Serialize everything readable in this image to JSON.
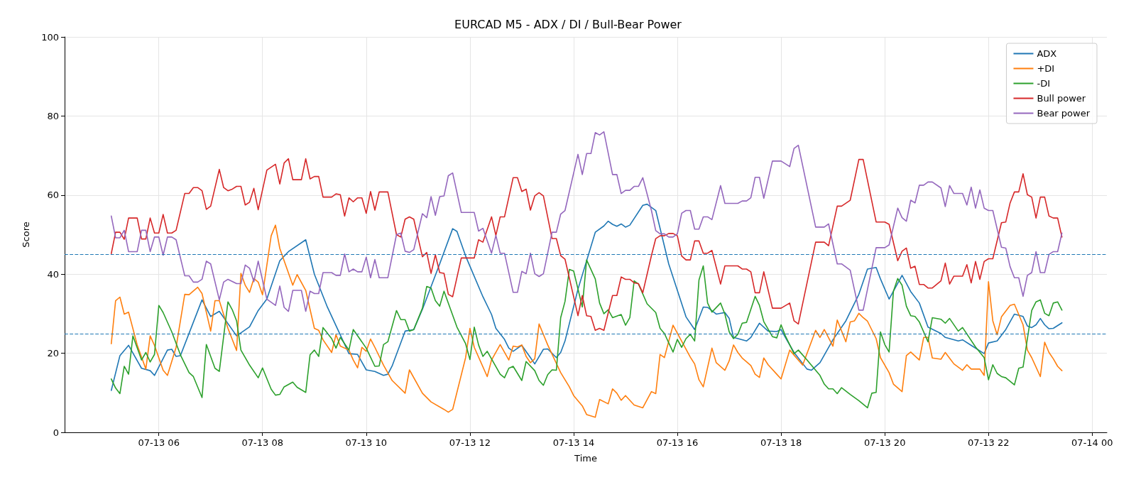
{
  "chart_data": {
    "type": "line",
    "title": "EURCAD M5 - ADX / DI / Bull-Bear Power",
    "xlabel": "Time",
    "ylabel": "Score",
    "xlim": [
      "--07-13T04:11",
      "--07-14T00:17"
    ],
    "xticks": [
      {
        "value": "--07-13T06:00",
        "label": "07-13 06"
      },
      {
        "value": "--07-13T08:00",
        "label": "07-13 08"
      },
      {
        "value": "--07-13T10:00",
        "label": "07-13 10"
      },
      {
        "value": "--07-13T12:00",
        "label": "07-13 12"
      },
      {
        "value": "--07-13T14:00",
        "label": "07-13 14"
      },
      {
        "value": "--07-13T16:00",
        "label": "07-13 16"
      },
      {
        "value": "--07-13T18:00",
        "label": "07-13 18"
      },
      {
        "value": "--07-13T20:00",
        "label": "07-13 20"
      },
      {
        "value": "--07-13T22:00",
        "label": "07-13 22"
      },
      {
        "value": "--07-14T00:00",
        "label": "07-14 00"
      }
    ],
    "ylim": [
      0,
      100
    ],
    "yticks": [
      0,
      20,
      40,
      60,
      80,
      100
    ],
    "grid": true,
    "legend": "top right",
    "line_style": "solid",
    "ref_lines": [
      {
        "axis": "y",
        "value": 45,
        "color": "#1f77b4",
        "line_style": "dashed"
      },
      {
        "axis": "y",
        "value": 25,
        "color": "#1f77b4",
        "line_style": "dashed"
      }
    ],
    "series": [
      {
        "name": "ADX",
        "color": "#1f77b4",
        "x": [
          "--07-13T05:05",
          "--07-13T05:15",
          "--07-13T05:25",
          "--07-13T05:40",
          "--07-13T05:50",
          "--07-13T05:55",
          "--07-13T06:10",
          "--07-13T06:15",
          "--07-13T06:20",
          "--07-13T06:25",
          "--07-13T06:50",
          "--07-13T07:00",
          "--07-13T07:10",
          "--07-13T07:30",
          "--07-13T07:45",
          "--07-13T07:55",
          "--07-13T08:05",
          "--07-13T08:20",
          "--07-13T08:30",
          "--07-13T08:50",
          "--07-13T09:00",
          "--07-13T09:15",
          "--07-13T09:40",
          "--07-13T09:50",
          "--07-13T10:00",
          "--07-13T10:10",
          "--07-13T10:20",
          "--07-13T10:25",
          "--07-13T10:30",
          "--07-13T10:45",
          "--07-13T10:55",
          "--07-13T11:05",
          "--07-13T11:25",
          "--07-13T11:40",
          "--07-13T11:45",
          "--07-13T11:55",
          "--07-13T12:15",
          "--07-13T12:25",
          "--07-13T12:30",
          "--07-13T12:40",
          "--07-13T12:45",
          "--07-13T12:50",
          "--07-13T13:00",
          "--07-13T13:10",
          "--07-13T13:15",
          "--07-13T13:25",
          "--07-13T13:30",
          "--07-13T13:40",
          "--07-13T13:45",
          "--07-13T13:50",
          "--07-13T14:05",
          "--07-13T14:25",
          "--07-13T14:35",
          "--07-13T14:40",
          "--07-13T14:45",
          "--07-13T14:50",
          "--07-13T14:55",
          "--07-13T15:00",
          "--07-13T15:05",
          "--07-13T15:20",
          "--07-13T15:25",
          "--07-13T15:35",
          "--07-13T15:50",
          "--07-13T16:10",
          "--07-13T16:20",
          "--07-13T16:30",
          "--07-13T16:35",
          "--07-13T16:45",
          "--07-13T16:55",
          "--07-13T17:00",
          "--07-13T17:05",
          "--07-13T17:20",
          "--07-13T17:25",
          "--07-13T17:35",
          "--07-13T17:45",
          "--07-13T17:55",
          "--07-13T18:00",
          "--07-13T18:05",
          "--07-13T18:15",
          "--07-13T18:30",
          "--07-13T18:35",
          "--07-13T18:45",
          "--07-13T19:00",
          "--07-13T19:15",
          "--07-13T19:30",
          "--07-13T19:40",
          "--07-13T19:50",
          "--07-13T19:55",
          "--07-13T20:05",
          "--07-13T20:20",
          "--07-13T20:30",
          "--07-13T20:40",
          "--07-13T20:50",
          "--07-13T21:05",
          "--07-13T21:10",
          "--07-13T21:25",
          "--07-13T21:30",
          "--07-13T21:40",
          "--07-13T21:55",
          "--07-13T22:00",
          "--07-13T22:10",
          "--07-13T22:20",
          "--07-13T22:30",
          "--07-13T22:40",
          "--07-13T22:45",
          "--07-13T22:50",
          "--07-13T22:55",
          "--07-13T23:00",
          "--07-13T23:05",
          "--07-13T23:10",
          "--07-13T23:15",
          "--07-13T23:25"
        ],
        "values": [
          10.6,
          19.4,
          22,
          16.2,
          15.6,
          14.4,
          20.8,
          21,
          19.2,
          19.4,
          33.5,
          29.3,
          30.6,
          24.4,
          26.7,
          30.8,
          33.7,
          43.4,
          45.7,
          48.7,
          40,
          31.7,
          19.9,
          19.7,
          15.8,
          15.4,
          14.4,
          14.7,
          16.8,
          25.6,
          26,
          31.1,
          42.6,
          51.5,
          50.8,
          44.6,
          34.3,
          29.8,
          26.3,
          23.5,
          21.3,
          20.5,
          22,
          18.9,
          17.3,
          21,
          21.1,
          18.9,
          20.2,
          23.1,
          36.2,
          50.6,
          52.2,
          53.4,
          52.6,
          52.1,
          52.7,
          51.9,
          52.4,
          57.4,
          57.7,
          56.1,
          42.6,
          29.2,
          26,
          31.7,
          31.6,
          29.9,
          30.3,
          28.8,
          24,
          23.1,
          24,
          27.6,
          25.6,
          25.5,
          26,
          24,
          20.2,
          16,
          15.7,
          17.6,
          23.4,
          28.2,
          34.9,
          41.3,
          41.7,
          38.8,
          33.7,
          39.7,
          35.6,
          32.7,
          26.6,
          25,
          24,
          23.1,
          23.4,
          22,
          19.9,
          22.6,
          23.1,
          26,
          29.9,
          29.3,
          26.9,
          26.5,
          27.2,
          28.8,
          27.2,
          26.2,
          26.3,
          27.7
        ]
      },
      {
        "name": "+DI",
        "color": "#ff7f0e",
        "x": [
          "--07-13T05:05",
          "--07-13T05:10",
          "--07-13T05:15",
          "--07-13T05:20",
          "--07-13T05:25",
          "--07-13T05:35",
          "--07-13T05:45",
          "--07-13T05:50",
          "--07-13T05:55",
          "--07-13T06:05",
          "--07-13T06:10",
          "--07-13T06:20",
          "--07-13T06:30",
          "--07-13T06:35",
          "--07-13T06:45",
          "--07-13T06:50",
          "--07-13T07:00",
          "--07-13T07:05",
          "--07-13T07:10",
          "--07-13T07:20",
          "--07-13T07:30",
          "--07-13T07:35",
          "--07-13T07:40",
          "--07-13T07:45",
          "--07-13T07:50",
          "--07-13T07:55",
          "--07-13T08:00",
          "--07-13T08:10",
          "--07-13T08:15",
          "--07-13T08:20",
          "--07-13T08:35",
          "--07-13T08:40",
          "--07-13T08:50",
          "--07-13T09:00",
          "--07-13T09:05",
          "--07-13T09:10",
          "--07-13T09:20",
          "--07-13T09:25",
          "--07-13T09:30",
          "--07-13T09:40",
          "--07-13T09:45",
          "--07-13T09:50",
          "--07-13T09:55",
          "--07-13T10:00",
          "--07-13T10:05",
          "--07-13T10:10",
          "--07-13T10:20",
          "--07-13T10:30",
          "--07-13T10:45",
          "--07-13T10:50",
          "--07-13T11:05",
          "--07-13T11:15",
          "--07-13T11:30",
          "--07-13T11:35",
          "--07-13T11:40",
          "--07-13T11:55",
          "--07-13T12:00",
          "--07-13T12:05",
          "--07-13T12:20",
          "--07-13T12:25",
          "--07-13T12:35",
          "--07-13T12:45",
          "--07-13T12:50",
          "--07-13T12:55",
          "--07-13T13:00",
          "--07-13T13:05",
          "--07-13T13:10",
          "--07-13T13:15",
          "--07-13T13:20",
          "--07-13T13:30",
          "--07-13T13:45",
          "--07-13T13:55",
          "--07-13T14:00",
          "--07-13T14:10",
          "--07-13T14:15",
          "--07-13T14:25",
          "--07-13T14:30",
          "--07-13T14:40",
          "--07-13T14:45",
          "--07-13T14:50",
          "--07-13T14:55",
          "--07-13T15:00",
          "--07-13T15:10",
          "--07-13T15:20",
          "--07-13T15:30",
          "--07-13T15:35",
          "--07-13T15:40",
          "--07-13T15:45",
          "--07-13T15:55",
          "--07-13T16:15",
          "--07-13T16:20",
          "--07-13T16:25",
          "--07-13T16:30",
          "--07-13T16:40",
          "--07-13T16:45",
          "--07-13T16:55",
          "--07-13T17:00",
          "--07-13T17:05",
          "--07-13T17:10",
          "--07-13T17:15",
          "--07-13T17:25",
          "--07-13T17:30",
          "--07-13T17:35",
          "--07-13T17:40",
          "--07-13T17:45",
          "--07-13T17:55",
          "--07-13T18:00",
          "--07-13T18:10",
          "--07-13T18:25",
          "--07-13T18:40",
          "--07-13T18:45",
          "--07-13T18:50",
          "--07-13T19:00",
          "--07-13T19:05",
          "--07-13T19:15",
          "--07-13T19:20",
          "--07-13T19:25",
          "--07-13T19:30",
          "--07-13T19:35",
          "--07-13T19:40",
          "--07-13T19:50",
          "--07-13T19:55",
          "--07-13T20:05",
          "--07-13T20:10",
          "--07-13T20:20",
          "--07-13T20:25",
          "--07-13T20:30",
          "--07-13T20:40",
          "--07-13T20:45",
          "--07-13T20:50",
          "--07-13T20:55",
          "--07-13T21:05",
          "--07-13T21:10",
          "--07-13T21:20",
          "--07-13T21:30",
          "--07-13T21:35",
          "--07-13T21:40",
          "--07-13T21:50",
          "--07-13T21:55",
          "--07-13T22:00",
          "--07-13T22:05",
          "--07-13T22:10",
          "--07-13T22:15",
          "--07-13T22:25",
          "--07-13T22:30",
          "--07-13T22:40",
          "--07-13T22:45",
          "--07-13T22:50",
          "--07-13T23:00",
          "--07-13T23:05",
          "--07-13T23:10",
          "--07-13T23:15",
          "--07-13T23:20",
          "--07-13T23:25"
        ],
        "values": [
          22.4,
          33.3,
          34.2,
          29.9,
          30.4,
          22.1,
          16,
          24.4,
          22,
          15.7,
          14.4,
          21.5,
          34.9,
          34.8,
          36.7,
          35.1,
          25.6,
          33.3,
          33.3,
          26.3,
          20.7,
          40.2,
          37.2,
          35.4,
          38.9,
          38,
          34.8,
          49.7,
          52.4,
          46.5,
          37.2,
          39.9,
          35.9,
          26.3,
          25.8,
          23.4,
          20.2,
          24.7,
          21.8,
          20.8,
          18.3,
          16.3,
          21.5,
          20.5,
          23.6,
          21.5,
          17,
          13.1,
          9.9,
          15.8,
          9.9,
          7.7,
          5.8,
          5.1,
          5.8,
          18.9,
          26.3,
          21.5,
          14.1,
          18.3,
          22.2,
          18.3,
          21.8,
          21.6,
          22.1,
          19.2,
          17.6,
          18.6,
          27.4,
          22.1,
          15.1,
          11.5,
          9.3,
          6.7,
          4.5,
          3.8,
          8.3,
          7.2,
          11,
          9.9,
          8.1,
          9.3,
          6.9,
          6.2,
          10.3,
          9.8,
          19.7,
          18.9,
          27.1,
          19,
          17.3,
          13.3,
          11.5,
          21.3,
          17.6,
          15.7,
          18.1,
          22.1,
          20.2,
          18.8,
          16.9,
          14.7,
          13.9,
          18.8,
          17.1,
          14.7,
          13.5,
          20.8,
          17,
          25.8,
          24,
          26,
          21.8,
          28.4,
          22.9,
          27.9,
          28.2,
          30.1,
          29,
          28.1,
          23.7,
          18.9,
          15.1,
          12.2,
          10.3,
          19.4,
          20.3,
          18.3,
          24,
          24,
          18.8,
          18.5,
          20.2,
          17.3,
          15.7,
          17.1,
          16,
          16,
          14.4,
          38.1,
          28.2,
          24.7,
          29.2,
          32.1,
          32.4,
          27.2,
          20.8,
          18.9,
          14.1,
          22.8,
          20.2,
          18.6,
          16.7,
          15.6
        ]
      },
      {
        "name": "-DI",
        "color": "#2ca02c",
        "x": [
          "--07-13T05:05",
          "--07-13T05:10",
          "--07-13T05:15",
          "--07-13T05:20",
          "--07-13T05:25",
          "--07-13T05:30",
          "--07-13T05:40",
          "--07-13T05:45",
          "--07-13T05:50",
          "--07-13T05:55",
          "--07-13T06:00",
          "--07-13T06:05",
          "--07-13T06:15",
          "--07-13T06:25",
          "--07-13T06:35",
          "--07-13T06:40",
          "--07-13T06:50",
          "--07-13T06:55",
          "--07-13T07:05",
          "--07-13T07:10",
          "--07-13T07:20",
          "--07-13T07:25",
          "--07-13T07:30",
          "--07-13T07:35",
          "--07-13T07:45",
          "--07-13T07:55",
          "--07-13T08:00",
          "--07-13T08:10",
          "--07-13T08:15",
          "--07-13T08:20",
          "--07-13T08:25",
          "--07-13T08:35",
          "--07-13T08:40",
          "--07-13T08:50",
          "--07-13T08:55",
          "--07-13T09:00",
          "--07-13T09:05",
          "--07-13T09:10",
          "--07-13T09:20",
          "--07-13T09:25",
          "--07-13T09:30",
          "--07-13T09:40",
          "--07-13T09:45",
          "--07-13T10:00",
          "--07-13T10:10",
          "--07-13T10:15",
          "--07-13T10:20",
          "--07-13T10:25",
          "--07-13T10:35",
          "--07-13T10:40",
          "--07-13T10:45",
          "--07-13T10:50",
          "--07-13T10:55",
          "--07-13T11:05",
          "--07-13T11:10",
          "--07-13T11:15",
          "--07-13T11:20",
          "--07-13T11:25",
          "--07-13T11:30",
          "--07-13T11:45",
          "--07-13T11:55",
          "--07-13T12:00",
          "--07-13T12:05",
          "--07-13T12:10",
          "--07-13T12:15",
          "--07-13T12:20",
          "--07-13T12:35",
          "--07-13T12:40",
          "--07-13T12:45",
          "--07-13T12:50",
          "--07-13T13:00",
          "--07-13T13:05",
          "--07-13T13:15",
          "--07-13T13:20",
          "--07-13T13:25",
          "--07-13T13:30",
          "--07-13T13:35",
          "--07-13T13:40",
          "--07-13T13:45",
          "--07-13T13:50",
          "--07-13T13:55",
          "--07-13T14:00",
          "--07-13T14:10",
          "--07-13T14:15",
          "--07-13T14:25",
          "--07-13T14:30",
          "--07-13T14:35",
          "--07-13T14:40",
          "--07-13T14:45",
          "--07-13T14:55",
          "--07-13T15:00",
          "--07-13T15:05",
          "--07-13T15:10",
          "--07-13T15:15",
          "--07-13T15:25",
          "--07-13T15:35",
          "--07-13T15:40",
          "--07-13T15:45",
          "--07-13T15:55",
          "--07-13T16:00",
          "--07-13T16:05",
          "--07-13T16:10",
          "--07-13T16:15",
          "--07-13T16:20",
          "--07-13T16:25",
          "--07-13T16:30",
          "--07-13T16:35",
          "--07-13T16:40",
          "--07-13T16:50",
          "--07-13T16:55",
          "--07-13T17:00",
          "--07-13T17:05",
          "--07-13T17:10",
          "--07-13T17:15",
          "--07-13T17:20",
          "--07-13T17:30",
          "--07-13T17:35",
          "--07-13T17:40",
          "--07-13T17:50",
          "--07-13T17:55",
          "--07-13T18:00",
          "--07-13T18:05",
          "--07-13T18:15",
          "--07-13T18:20",
          "--07-13T18:30",
          "--07-13T18:45",
          "--07-13T18:50",
          "--07-13T18:55",
          "--07-13T19:00",
          "--07-13T19:05",
          "--07-13T19:10",
          "--07-13T19:20",
          "--07-13T19:30",
          "--07-13T19:40",
          "--07-13T19:45",
          "--07-13T19:50",
          "--07-13T19:55",
          "--07-13T20:00",
          "--07-13T20:05",
          "--07-13T20:10",
          "--07-13T20:15",
          "--07-13T20:20",
          "--07-13T20:25",
          "--07-13T20:30",
          "--07-13T20:35",
          "--07-13T20:40",
          "--07-13T20:50",
          "--07-13T20:55",
          "--07-13T21:05",
          "--07-13T21:10",
          "--07-13T21:15",
          "--07-13T21:25",
          "--07-13T21:30",
          "--07-13T21:45",
          "--07-13T21:55",
          "--07-13T22:00",
          "--07-13T22:05",
          "--07-13T22:10",
          "--07-13T22:15",
          "--07-13T22:20",
          "--07-13T22:30",
          "--07-13T22:35",
          "--07-13T22:40",
          "--07-13T22:50",
          "--07-13T22:55",
          "--07-13T23:00",
          "--07-13T23:05",
          "--07-13T23:10",
          "--07-13T23:15",
          "--07-13T23:20",
          "--07-13T23:25"
        ],
        "values": [
          13.5,
          11.2,
          9.8,
          16.7,
          14.7,
          24.4,
          18.3,
          20.2,
          17.8,
          19.7,
          32.1,
          30.3,
          25.4,
          19.6,
          15.1,
          14.1,
          8.8,
          22.2,
          16.2,
          15.4,
          33,
          31,
          28.2,
          20.8,
          17,
          13.8,
          16.3,
          10.9,
          9.4,
          9.6,
          11.5,
          12.7,
          11.4,
          10.1,
          19.6,
          20.8,
          19.2,
          26.5,
          23.7,
          21.3,
          24,
          20.8,
          26,
          21.3,
          16.7,
          16.8,
          22.2,
          22.9,
          30.8,
          28.5,
          28.5,
          25.6,
          26,
          31.4,
          36.9,
          36.5,
          33.3,
          31.9,
          35.7,
          26.6,
          22.4,
          18.4,
          26.6,
          22.1,
          19.2,
          20.5,
          14.7,
          13.8,
          16.2,
          16.7,
          13.1,
          17.9,
          15.6,
          13.1,
          11.9,
          14.6,
          15.8,
          15.7,
          29,
          33.1,
          41.2,
          40.8,
          31.7,
          43.6,
          38.8,
          32.7,
          30,
          31,
          29,
          29.8,
          27.1,
          29,
          38.3,
          37.5,
          32.5,
          30.3,
          26.3,
          25,
          20.3,
          23.5,
          21.5,
          23.7,
          24.8,
          23.1,
          38.5,
          42.1,
          32.7,
          30.4,
          32.7,
          29.9,
          25.4,
          23.7,
          24.8,
          27.6,
          27.8,
          34.4,
          32.1,
          28,
          24.2,
          23.9,
          27.2,
          24.4,
          19.9,
          20.8,
          18.3,
          14.4,
          12.2,
          11,
          11,
          9.8,
          11.3,
          9.6,
          8,
          6.2,
          9.9,
          10.1,
          25.4,
          22.2,
          20.3,
          35.7,
          38.9,
          37.2,
          31.9,
          29.5,
          29.3,
          27.9,
          22.9,
          29,
          28.6,
          27.6,
          28.8,
          25.6,
          26.5,
          21.6,
          18.9,
          13.3,
          17.1,
          14.9,
          14.1,
          13.8,
          12,
          16.2,
          16.5,
          30.8,
          33,
          33.5,
          30.1,
          29.5,
          32.7,
          33,
          30.9
        ]
      },
      {
        "name": "Bull power",
        "color": "#d62728",
        "x": [
          "--07-13T05:05",
          "--07-13T05:10",
          "--07-13T05:15",
          "--07-13T05:20",
          "--07-13T05:25",
          "--07-13T05:35",
          "--07-13T05:40",
          "--07-13T05:45",
          "--07-13T05:50",
          "--07-13T05:55",
          "--07-13T06:00",
          "--07-13T06:05",
          "--07-13T06:10",
          "--07-13T06:15",
          "--07-13T06:20",
          "--07-13T06:30",
          "--07-13T06:35",
          "--07-13T06:40",
          "--07-13T06:45",
          "--07-13T06:50",
          "--07-13T06:55",
          "--07-13T07:00",
          "--07-13T07:10",
          "--07-13T07:15",
          "--07-13T07:20",
          "--07-13T07:25",
          "--07-13T07:30",
          "--07-13T07:35",
          "--07-13T07:40",
          "--07-13T07:45",
          "--07-13T07:50",
          "--07-13T07:55",
          "--07-13T08:05",
          "--07-13T08:15",
          "--07-13T08:20",
          "--07-13T08:25",
          "--07-13T08:30",
          "--07-13T08:35",
          "--07-13T08:45",
          "--07-13T08:50",
          "--07-13T08:55",
          "--07-13T09:00",
          "--07-13T09:05",
          "--07-13T09:10",
          "--07-13T09:20",
          "--07-13T09:25",
          "--07-13T09:30",
          "--07-13T09:35",
          "--07-13T09:40",
          "--07-13T09:45",
          "--07-13T09:50",
          "--07-13T09:55",
          "--07-13T10:00",
          "--07-13T10:05",
          "--07-13T10:10",
          "--07-13T10:15",
          "--07-13T10:25",
          "--07-13T10:35",
          "--07-13T10:40",
          "--07-13T10:45",
          "--07-13T10:50",
          "--07-13T10:55",
          "--07-13T11:05",
          "--07-13T11:10",
          "--07-13T11:15",
          "--07-13T11:20",
          "--07-13T11:25",
          "--07-13T11:30",
          "--07-13T11:35",
          "--07-13T11:40",
          "--07-13T11:50",
          "--07-13T12:05",
          "--07-13T12:10",
          "--07-13T12:15",
          "--07-13T12:25",
          "--07-13T12:30",
          "--07-13T12:35",
          "--07-13T12:40",
          "--07-13T12:50",
          "--07-13T12:55",
          "--07-13T13:00",
          "--07-13T13:05",
          "--07-13T13:10",
          "--07-13T13:15",
          "--07-13T13:20",
          "--07-13T13:25",
          "--07-13T13:35",
          "--07-13T13:40",
          "--07-13T13:45",
          "--07-13T13:50",
          "--07-13T14:05",
          "--07-13T14:10",
          "--07-13T14:15",
          "--07-13T14:20",
          "--07-13T14:25",
          "--07-13T14:30",
          "--07-13T14:35",
          "--07-13T14:45",
          "--07-13T14:50",
          "--07-13T14:55",
          "--07-13T15:00",
          "--07-13T15:05",
          "--07-13T15:10",
          "--07-13T15:15",
          "--07-13T15:20",
          "--07-13T15:30",
          "--07-13T15:35",
          "--07-13T15:40",
          "--07-13T15:45",
          "--07-13T15:50",
          "--07-13T15:55",
          "--07-13T16:00",
          "--07-13T16:05",
          "--07-13T16:10",
          "--07-13T16:15",
          "--07-13T16:20",
          "--07-13T16:25",
          "--07-13T16:30",
          "--07-13T16:35",
          "--07-13T16:40",
          "--07-13T16:50",
          "--07-13T16:55",
          "--07-13T17:10",
          "--07-13T17:15",
          "--07-13T17:20",
          "--07-13T17:25",
          "--07-13T17:30",
          "--07-13T17:35",
          "--07-13T17:40",
          "--07-13T17:50",
          "--07-13T18:00",
          "--07-13T18:10",
          "--07-13T18:15",
          "--07-13T18:20",
          "--07-13T18:40",
          "--07-13T18:50",
          "--07-13T18:55",
          "--07-13T19:05",
          "--07-13T19:10",
          "--07-13T19:20",
          "--07-13T19:30",
          "--07-13T19:35",
          "--07-13T19:50",
          "--07-13T20:00",
          "--07-13T20:05",
          "--07-13T20:15",
          "--07-13T20:20",
          "--07-13T20:25",
          "--07-13T20:30",
          "--07-13T20:35",
          "--07-13T20:40",
          "--07-13T20:45",
          "--07-13T20:50",
          "--07-13T20:55",
          "--07-13T21:05",
          "--07-13T21:10",
          "--07-13T21:15",
          "--07-13T21:20",
          "--07-13T21:30",
          "--07-13T21:35",
          "--07-13T21:40",
          "--07-13T21:45",
          "--07-13T21:50",
          "--07-13T21:55",
          "--07-13T22:00",
          "--07-13T22:05",
          "--07-13T22:15",
          "--07-13T22:20",
          "--07-13T22:25",
          "--07-13T22:30",
          "--07-13T22:35",
          "--07-13T22:40",
          "--07-13T22:45",
          "--07-13T22:50",
          "--07-13T22:55",
          "--07-13T23:00",
          "--07-13T23:05",
          "--07-13T23:10",
          "--07-13T23:15",
          "--07-13T23:20",
          "--07-13T23:25"
        ],
        "values": [
          45.2,
          50.6,
          50.6,
          48.8,
          54.2,
          54.2,
          48.9,
          48.9,
          54.2,
          50.4,
          50.4,
          55.1,
          50.4,
          50.4,
          51.1,
          60.4,
          60.4,
          61.9,
          61.9,
          61.1,
          56.4,
          57.2,
          66.5,
          61.9,
          61.1,
          61.5,
          62.2,
          62.2,
          57.5,
          58.2,
          61.7,
          56.3,
          66.3,
          67.8,
          62.8,
          68.1,
          69.2,
          63.9,
          63.9,
          69.2,
          64.1,
          64.7,
          64.7,
          59.5,
          59.5,
          60.3,
          60.1,
          54.7,
          59.3,
          58.3,
          59.3,
          59.3,
          55.4,
          60.9,
          56.2,
          60.8,
          60.8,
          50,
          49.4,
          53.9,
          54.5,
          53.9,
          44.4,
          45.5,
          40.2,
          44.9,
          40.4,
          40.2,
          34.9,
          34.3,
          44.1,
          44.1,
          48.7,
          48.1,
          54.5,
          49.8,
          54.5,
          54.5,
          64.4,
          64.4,
          60.9,
          61.5,
          56.2,
          59.8,
          60.6,
          59.8,
          49,
          49,
          44.7,
          43.8,
          29.5,
          34.6,
          29.5,
          29.3,
          25.8,
          26.3,
          25.8,
          34.6,
          34.6,
          39.3,
          38.7,
          38.7,
          37.8,
          37.6,
          35.3,
          44.7,
          49,
          49.7,
          49.7,
          50.3,
          50.3,
          49.7,
          44.6,
          43.6,
          43.6,
          48.4,
          48.4,
          45.3,
          45.3,
          46,
          37.5,
          42.1,
          42.1,
          41.3,
          41.3,
          40.6,
          35.3,
          35.3,
          40.6,
          31.4,
          31.4,
          32.7,
          28.2,
          27.4,
          48.1,
          48.1,
          47.2,
          57.2,
          57.2,
          58.7,
          69,
          69,
          53.2,
          53.2,
          52.6,
          43.4,
          45.8,
          46.6,
          41.5,
          42,
          37.4,
          37.4,
          36.5,
          36.5,
          38.3,
          42.8,
          37.5,
          39.5,
          39.5,
          42.4,
          37.8,
          43.2,
          38.7,
          43.2,
          43.9,
          43.9,
          53,
          53.2,
          58,
          60.8,
          60.8,
          65.4,
          60.1,
          59.5,
          54.2,
          59.5,
          59.5,
          54.7,
          54.2,
          54.2,
          49.4
        ]
      },
      {
        "name": "Bear power",
        "color": "#9467bd",
        "x": [
          "--07-13T05:05",
          "--07-13T05:10",
          "--07-13T05:15",
          "--07-13T05:20",
          "--07-13T05:25",
          "--07-13T05:35",
          "--07-13T05:40",
          "--07-13T05:45",
          "--07-13T05:50",
          "--07-13T05:55",
          "--07-13T06:00",
          "--07-13T06:05",
          "--07-13T06:10",
          "--07-13T06:15",
          "--07-13T06:20",
          "--07-13T06:30",
          "--07-13T06:35",
          "--07-13T06:40",
          "--07-13T06:45",
          "--07-13T06:50",
          "--07-13T06:55",
          "--07-13T07:00",
          "--07-13T07:10",
          "--07-13T07:15",
          "--07-13T07:20",
          "--07-13T07:30",
          "--07-13T07:35",
          "--07-13T07:40",
          "--07-13T07:45",
          "--07-13T07:50",
          "--07-13T07:55",
          "--07-13T08:05",
          "--07-13T08:15",
          "--07-13T08:20",
          "--07-13T08:25",
          "--07-13T08:30",
          "--07-13T08:35",
          "--07-13T08:45",
          "--07-13T08:50",
          "--07-13T08:55",
          "--07-13T09:00",
          "--07-13T09:05",
          "--07-13T09:10",
          "--07-13T09:20",
          "--07-13T09:25",
          "--07-13T09:30",
          "--07-13T09:35",
          "--07-13T09:40",
          "--07-13T09:45",
          "--07-13T09:50",
          "--07-13T09:55",
          "--07-13T10:00",
          "--07-13T10:05",
          "--07-13T10:10",
          "--07-13T10:15",
          "--07-13T10:25",
          "--07-13T10:35",
          "--07-13T10:40",
          "--07-13T10:45",
          "--07-13T10:50",
          "--07-13T10:55",
          "--07-13T11:05",
          "--07-13T11:10",
          "--07-13T11:15",
          "--07-13T11:20",
          "--07-13T11:25",
          "--07-13T11:30",
          "--07-13T11:35",
          "--07-13T11:40",
          "--07-13T11:50",
          "--07-13T12:05",
          "--07-13T12:10",
          "--07-13T12:15",
          "--07-13T12:25",
          "--07-13T12:30",
          "--07-13T12:35",
          "--07-13T12:40",
          "--07-13T12:50",
          "--07-13T12:55",
          "--07-13T13:00",
          "--07-13T13:05",
          "--07-13T13:10",
          "--07-13T13:15",
          "--07-13T13:20",
          "--07-13T13:25",
          "--07-13T13:35",
          "--07-13T13:40",
          "--07-13T13:45",
          "--07-13T13:50",
          "--07-13T14:05",
          "--07-13T14:10",
          "--07-13T14:15",
          "--07-13T14:20",
          "--07-13T14:25",
          "--07-13T14:30",
          "--07-13T14:35",
          "--07-13T14:45",
          "--07-13T14:50",
          "--07-13T14:55",
          "--07-13T15:00",
          "--07-13T15:05",
          "--07-13T15:10",
          "--07-13T15:15",
          "--07-13T15:20",
          "--07-13T15:30",
          "--07-13T15:35",
          "--07-13T15:40",
          "--07-13T15:45",
          "--07-13T15:50",
          "--07-13T15:55",
          "--07-13T16:00",
          "--07-13T16:05",
          "--07-13T16:10",
          "--07-13T16:15",
          "--07-13T16:20",
          "--07-13T16:25",
          "--07-13T16:30",
          "--07-13T16:35",
          "--07-13T16:40",
          "--07-13T16:50",
          "--07-13T16:55",
          "--07-13T17:10",
          "--07-13T17:15",
          "--07-13T17:20",
          "--07-13T17:25",
          "--07-13T17:30",
          "--07-13T17:35",
          "--07-13T17:40",
          "--07-13T17:50",
          "--07-13T18:00",
          "--07-13T18:10",
          "--07-13T18:15",
          "--07-13T18:20",
          "--07-13T18:40",
          "--07-13T18:50",
          "--07-13T18:55",
          "--07-13T19:05",
          "--07-13T19:10",
          "--07-13T19:20",
          "--07-13T19:30",
          "--07-13T19:35",
          "--07-13T19:50",
          "--07-13T20:00",
          "--07-13T20:05",
          "--07-13T20:15",
          "--07-13T20:20",
          "--07-13T20:25",
          "--07-13T20:30",
          "--07-13T20:35",
          "--07-13T20:40",
          "--07-13T20:45",
          "--07-13T20:50",
          "--07-13T20:55",
          "--07-13T21:05",
          "--07-13T21:10",
          "--07-13T21:15",
          "--07-13T21:20",
          "--07-13T21:30",
          "--07-13T21:35",
          "--07-13T21:40",
          "--07-13T21:45",
          "--07-13T21:50",
          "--07-13T21:55",
          "--07-13T22:00",
          "--07-13T22:05",
          "--07-13T22:15",
          "--07-13T22:20",
          "--07-13T22:25",
          "--07-13T22:30",
          "--07-13T22:35",
          "--07-13T22:40",
          "--07-13T22:45",
          "--07-13T22:50",
          "--07-13T22:55",
          "--07-13T23:00",
          "--07-13T23:05",
          "--07-13T23:10",
          "--07-13T23:15",
          "--07-13T23:20",
          "--07-13T23:25"
        ],
        "values": [
          54.7,
          49.2,
          49.2,
          51.1,
          45.7,
          45.7,
          51.1,
          51.1,
          45.7,
          49.4,
          49.4,
          44.8,
          49.4,
          49.4,
          48.7,
          39.6,
          39.6,
          38,
          38,
          38.7,
          43.3,
          42.6,
          33.5,
          38,
          38.7,
          37.6,
          37.6,
          42.3,
          41.5,
          38.1,
          43.3,
          33.7,
          32.1,
          37,
          31.6,
          30.6,
          35.9,
          35.9,
          30.6,
          35.7,
          35.1,
          35.1,
          40.4,
          40.4,
          39.7,
          39.7,
          45.1,
          40.6,
          41.3,
          40.6,
          40.6,
          44.3,
          39.1,
          43.7,
          39.1,
          39.1,
          50,
          50.4,
          45.8,
          45.5,
          46.2,
          55.3,
          54.3,
          59.6,
          54.9,
          59.6,
          59.8,
          64.9,
          65.6,
          55.6,
          55.6,
          50.9,
          51.6,
          45.3,
          49.8,
          45.3,
          45.3,
          35.4,
          35.4,
          40.7,
          40.1,
          45.3,
          40.1,
          39.4,
          40.1,
          50.6,
          50.6,
          55.2,
          56.1,
          70.3,
          65.2,
          70.5,
          70.5,
          75.8,
          75.2,
          76,
          65.2,
          65.2,
          60.4,
          61.2,
          61.2,
          62.2,
          62.2,
          64.4,
          56.1,
          51,
          50.2,
          50.2,
          49.4,
          49.4,
          50.2,
          55.4,
          56.1,
          56.1,
          51.4,
          51.4,
          54.5,
          54.5,
          53.8,
          62.4,
          57.9,
          57.9,
          58.5,
          58.5,
          59.3,
          64.5,
          64.5,
          59.2,
          68.6,
          68.6,
          67.2,
          71.8,
          72.6,
          51.9,
          51.9,
          52.7,
          42.6,
          42.6,
          41,
          30.9,
          30.9,
          46.7,
          46.7,
          47.4,
          56.7,
          54.3,
          53.4,
          58.7,
          58,
          62.5,
          62.5,
          63.3,
          63.3,
          61.8,
          57.1,
          62.4,
          60.4,
          60.4,
          57.5,
          62,
          56.7,
          61.3,
          56.7,
          56.1,
          56.1,
          46.8,
          46.6,
          41.9,
          39.1,
          39.1,
          34.4,
          39.7,
          40.4,
          45.7,
          40.4,
          40.4,
          45,
          45.7,
          45.7,
          50.4
        ]
      }
    ]
  }
}
